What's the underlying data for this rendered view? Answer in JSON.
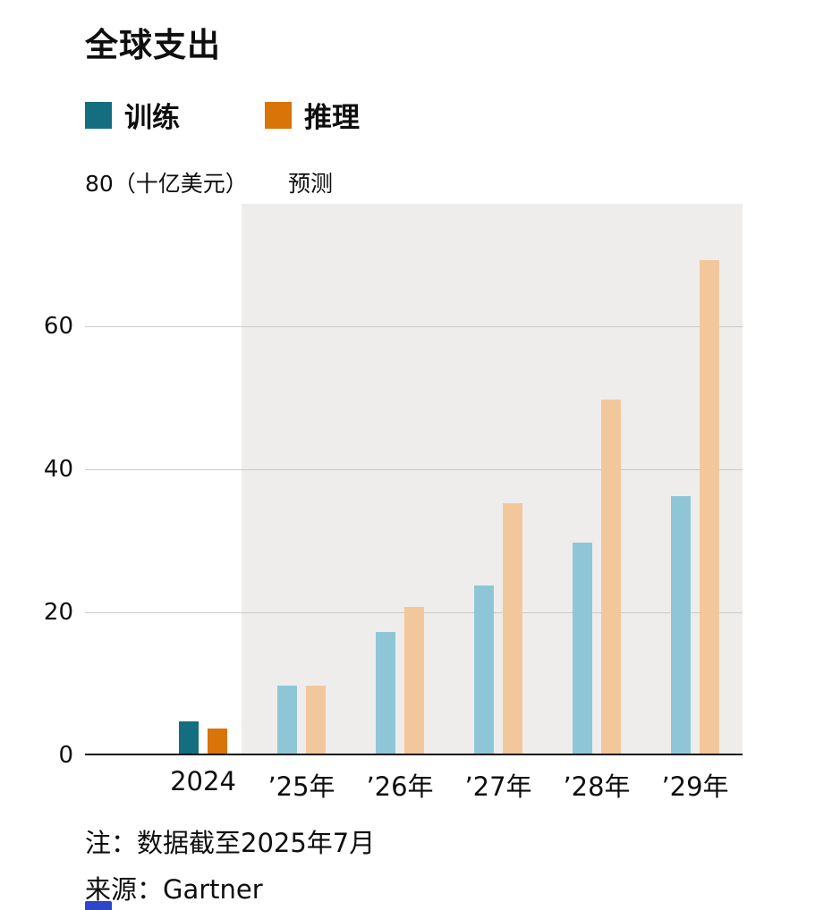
{
  "chart_data": {
    "type": "bar",
    "title": "全球支出",
    "unit_label": "80（十亿美元）",
    "forecast_label": "预测",
    "categories": [
      "2024",
      "’25年",
      "’26年",
      "’27年",
      "’28年",
      "’29年"
    ],
    "series": [
      {
        "name": "训练",
        "key": "training",
        "color_actual": "#156d80",
        "color_forecast": "#8fc6d7",
        "values": [
          4.5,
          9.5,
          17,
          23.5,
          29.5,
          36
        ]
      },
      {
        "name": "推理",
        "key": "inference",
        "color_actual": "#d87408",
        "color_forecast": "#f3c79c",
        "values": [
          3.5,
          9.5,
          20.5,
          35,
          49.5,
          69
        ]
      }
    ],
    "ylim": [
      0,
      80
    ],
    "yticks": [
      0,
      20,
      40,
      60
    ],
    "forecast_from_index": 1,
    "grid": true,
    "legend_position": "top-left"
  },
  "colors": {
    "forecast_band": "#eeedeb",
    "gridline": "#c9c9c9",
    "axis": "#111111",
    "brand_mark": "#2e45c8"
  },
  "footer": {
    "note": "注：数据截至2025年7月",
    "source": "来源：Gartner"
  }
}
